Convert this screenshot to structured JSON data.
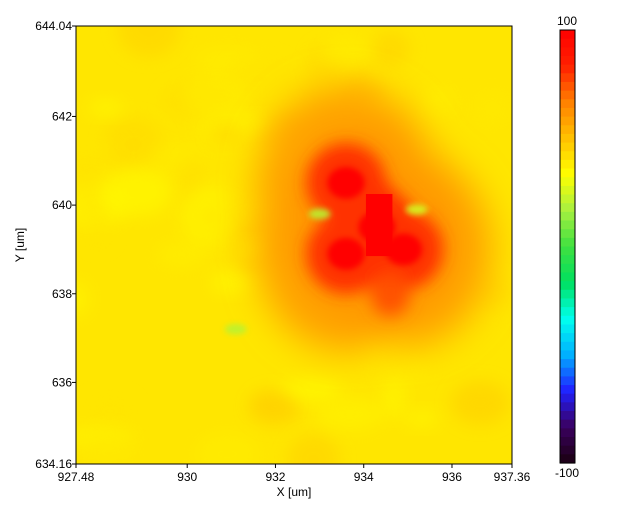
{
  "chart_data": {
    "type": "heatmap",
    "title": "",
    "xlabel": "X [um]",
    "ylabel": "Y [um]",
    "xlim": [
      927.48,
      937.36
    ],
    "ylim": [
      634.16,
      644.04
    ],
    "x_ticks": [
      {
        "value": 927.48,
        "label": "927.48"
      },
      {
        "value": 930,
        "label": "930"
      },
      {
        "value": 932,
        "label": "932"
      },
      {
        "value": 934,
        "label": "934"
      },
      {
        "value": 936,
        "label": "936"
      },
      {
        "value": 937.36,
        "label": "937.36"
      }
    ],
    "y_ticks": [
      {
        "value": 644.04,
        "label": "644.04"
      },
      {
        "value": 642,
        "label": "642"
      },
      {
        "value": 640,
        "label": "640"
      },
      {
        "value": 638,
        "label": "638"
      },
      {
        "value": 636,
        "label": "636"
      },
      {
        "value": 634.16,
        "label": "634.16"
      }
    ],
    "colorbar": {
      "min": -100,
      "max": 100,
      "max_label": "100",
      "min_label": "-100",
      "colors": [
        "#1a0010",
        "#3a0060",
        "#2020ff",
        "#00b0ff",
        "#00ffee",
        "#00e060",
        "#40e040",
        "#a8f040",
        "#ffff00",
        "#ffc000",
        "#ff8000",
        "#ff2000",
        "#ff0000"
      ]
    },
    "background_value": 40,
    "features": [
      {
        "x": 934.3,
        "y": 639.5,
        "value": 100
      },
      {
        "x": 933.6,
        "y": 640.5,
        "value": 100
      },
      {
        "x": 933.6,
        "y": 638.9,
        "value": 100
      },
      {
        "x": 934.9,
        "y": 639.0,
        "value": 100
      },
      {
        "x": 934.3,
        "y": 640.1,
        "value": 80
      },
      {
        "x": 933.0,
        "y": 639.8,
        "value": 20
      },
      {
        "x": 935.2,
        "y": 639.9,
        "value": 25
      },
      {
        "x": 934.6,
        "y": 638.0,
        "value": 75
      },
      {
        "x": 931.1,
        "y": 637.2,
        "value": 20
      }
    ]
  }
}
